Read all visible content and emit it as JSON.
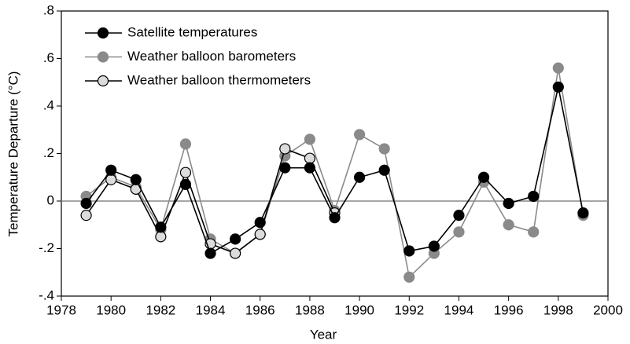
{
  "chart_data": {
    "type": "line",
    "xlabel": "Year",
    "ylabel": "Temperature Departure (°C)",
    "x": [
      1979,
      1980,
      1981,
      1982,
      1983,
      1984,
      1985,
      1986,
      1987,
      1988,
      1989,
      1990,
      1991,
      1992,
      1993,
      1994,
      1995,
      1996,
      1997,
      1998,
      1999
    ],
    "series": [
      {
        "name": "Weather balloon barometers",
        "color": "#8a8a8a",
        "marker_color": "#8a8a8a",
        "values": [
          0.02,
          0.1,
          0.06,
          -0.12,
          0.24,
          -0.16,
          -0.22,
          -0.14,
          0.19,
          0.26,
          -0.04,
          0.28,
          0.22,
          -0.32,
          -0.22,
          -0.13,
          0.08,
          -0.1,
          -0.13,
          0.56,
          -0.06
        ]
      },
      {
        "name": "Weather balloon thermometers",
        "color": "#000000",
        "marker_color": "#dcdcdc",
        "values": [
          -0.06,
          0.09,
          0.05,
          -0.15,
          0.12,
          -0.18,
          -0.22,
          -0.14,
          0.22,
          0.18,
          -0.05,
          null,
          null,
          null,
          null,
          null,
          null,
          null,
          null,
          null,
          null
        ]
      },
      {
        "name": "Satellite temperatures",
        "color": "#000000",
        "marker_color": "#000000",
        "values": [
          -0.01,
          0.13,
          0.09,
          -0.11,
          0.07,
          -0.22,
          -0.16,
          -0.09,
          0.14,
          0.14,
          -0.07,
          0.1,
          0.13,
          -0.21,
          -0.19,
          -0.06,
          0.1,
          -0.01,
          0.02,
          0.48,
          -0.05
        ]
      }
    ],
    "legend_order": [
      2,
      0,
      1
    ],
    "xlim": [
      1978,
      2000
    ],
    "xticks": [
      1978,
      1980,
      1982,
      1984,
      1986,
      1988,
      1990,
      1992,
      1994,
      1996,
      1998,
      2000
    ],
    "ylim": [
      -0.4,
      0.8
    ],
    "yticks": [
      {
        "value": -0.4,
        "label": "-.4"
      },
      {
        "value": -0.2,
        "label": "-.2"
      },
      0,
      {
        "value": 0.2,
        "label": ".2"
      },
      {
        "value": 0.4,
        "label": ".4"
      },
      {
        "value": 0.6,
        "label": ".6"
      },
      {
        "value": 0.8,
        "label": ".8"
      }
    ],
    "legend": "upper left"
  }
}
